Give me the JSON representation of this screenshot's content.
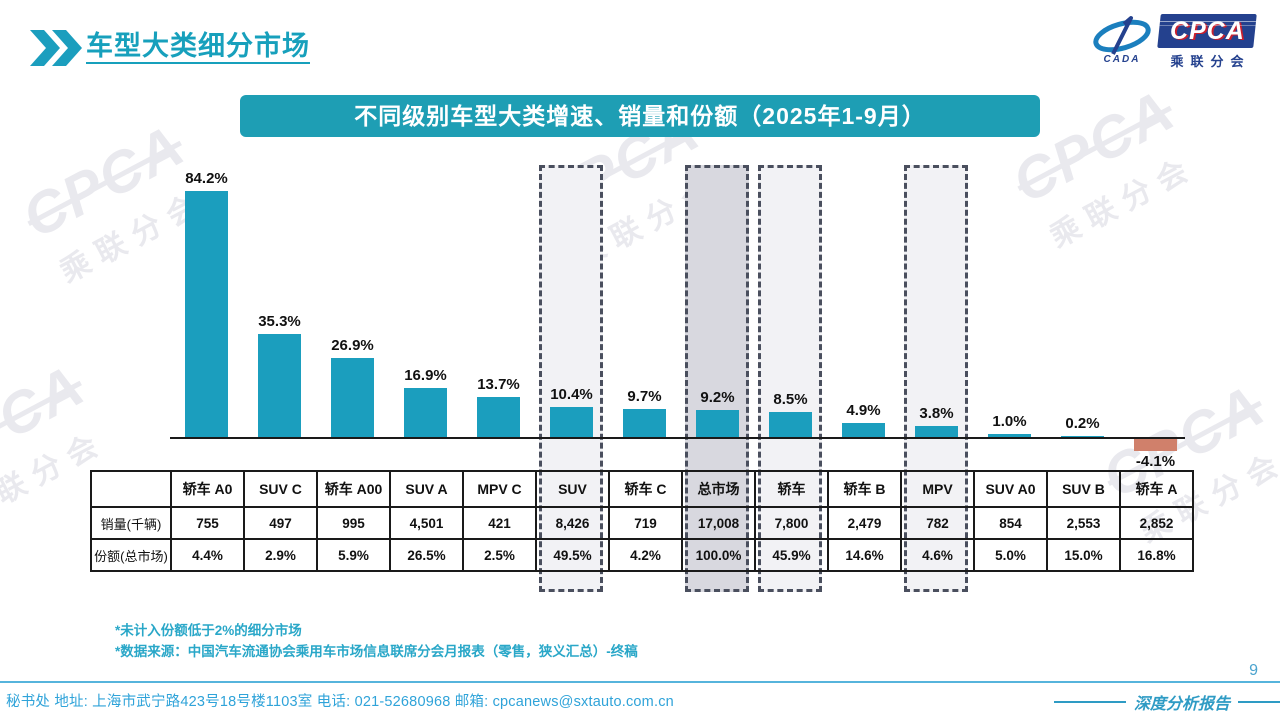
{
  "header": {
    "title": "车型大类细分市场"
  },
  "logo": {
    "cpca": "CPCA",
    "sub": "乘联分会",
    "cada": "CADA"
  },
  "banner": {
    "title": "不同级别车型大类增速、销量和份额（2025年1-9月）"
  },
  "chart_data": {
    "type": "bar",
    "title": "不同级别车型大类增速、销量和份额（2025年1-9月）",
    "categories": [
      "轿车 A0",
      "SUV C",
      "轿车 A00",
      "SUV A",
      "MPV C",
      "SUV",
      "轿车 C",
      "总市场",
      "轿车",
      "轿车 B",
      "MPV",
      "SUV A0",
      "SUV B",
      "轿车 A"
    ],
    "values": [
      84.2,
      35.3,
      26.9,
      16.9,
      13.7,
      10.4,
      9.7,
      9.2,
      8.5,
      4.9,
      3.8,
      1.0,
      0.2,
      -4.1
    ],
    "labels": [
      "84.2%",
      "35.3%",
      "26.9%",
      "16.9%",
      "13.7%",
      "10.4%",
      "9.7%",
      "9.2%",
      "8.5%",
      "4.9%",
      "3.8%",
      "1.0%",
      "0.2%",
      "-4.1%"
    ],
    "ylim": [
      -5,
      90
    ],
    "grid": false,
    "bar_color": "#1b9ebe",
    "negative_bar_color": "#d0806b",
    "highlight_boxes": [
      {
        "category": "SUV",
        "style": "light"
      },
      {
        "category": "总市场",
        "style": "dark"
      },
      {
        "category": "轿车",
        "style": "light"
      },
      {
        "category": "MPV",
        "style": "light"
      }
    ]
  },
  "table": {
    "row_headers": [
      "销量(千辆)",
      "份额(总市场)"
    ],
    "columns": [
      "轿车 A0",
      "SUV C",
      "轿车 A00",
      "SUV A",
      "MPV C",
      "SUV",
      "轿车 C",
      "总市场",
      "轿车",
      "轿车 B",
      "MPV",
      "SUV A0",
      "SUV B",
      "轿车 A"
    ],
    "sales": [
      "755",
      "497",
      "995",
      "4,501",
      "421",
      "8,426",
      "719",
      "17,008",
      "7,800",
      "2,479",
      "782",
      "854",
      "2,553",
      "2,852"
    ],
    "share": [
      "4.4%",
      "2.9%",
      "5.9%",
      "26.5%",
      "2.5%",
      "49.5%",
      "4.2%",
      "100.0%",
      "45.9%",
      "14.6%",
      "4.6%",
      "5.0%",
      "15.0%",
      "16.8%"
    ]
  },
  "notes": [
    "*未计入份额低于2%的细分市场",
    "*数据来源：中国汽车流通协会乘用车市场信息联席分会月报表（零售，狭义汇总）-终稿"
  ],
  "footer": {
    "contact": "秘书处  地址: 上海市武宁路423号18号楼1103室  电话: 021-52680968  邮箱: cpcanews@sxtauto.com.cn",
    "report_label": "深度分析报告",
    "page_number": "9"
  },
  "colors": {
    "accent_teal": "#17a0bc",
    "banner_bg": "#1e9eb4",
    "bar": "#1b9ebe",
    "negative_bar": "#d0806b",
    "highlight_light": "#f2f2f5",
    "highlight_dark": "#d8d8df",
    "dashed_border": "#4a4f5e",
    "note_text": "#29a7c8",
    "footer_text": "#2fa3d9",
    "logo_navy": "#24418e",
    "logo_red": "#c8202f"
  }
}
